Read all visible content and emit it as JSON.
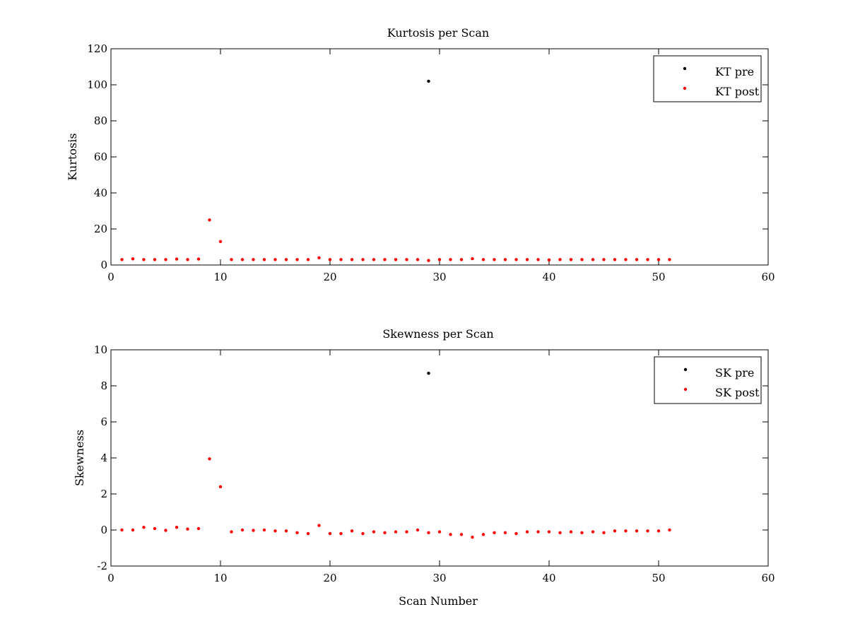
{
  "chart_data": [
    {
      "type": "scatter",
      "title": "Kurtosis per Scan",
      "xlabel": "",
      "ylabel": "Kurtosis",
      "xlim": [
        0,
        60
      ],
      "ylim": [
        0,
        120
      ],
      "xticks": [
        0,
        10,
        20,
        30,
        40,
        50,
        60
      ],
      "yticks": [
        0,
        20,
        40,
        60,
        80,
        100,
        120
      ],
      "grid": false,
      "legend_position": "top-right",
      "series": [
        {
          "name": "KT pre",
          "color": "#000000",
          "points": [
            [
              29,
              102
            ]
          ]
        },
        {
          "name": "KT post",
          "color": "#ff0000",
          "points": [
            [
              1,
              3
            ],
            [
              2,
              3.4
            ],
            [
              3,
              3
            ],
            [
              4,
              3
            ],
            [
              5,
              3
            ],
            [
              6,
              3.3
            ],
            [
              7,
              3
            ],
            [
              8,
              3.3
            ],
            [
              9,
              25
            ],
            [
              10,
              13
            ],
            [
              11,
              3
            ],
            [
              12,
              3
            ],
            [
              13,
              3
            ],
            [
              14,
              3
            ],
            [
              15,
              3
            ],
            [
              16,
              3
            ],
            [
              17,
              3
            ],
            [
              18,
              3
            ],
            [
              19,
              4
            ],
            [
              20,
              3
            ],
            [
              21,
              3
            ],
            [
              22,
              3
            ],
            [
              23,
              3
            ],
            [
              24,
              3
            ],
            [
              25,
              3
            ],
            [
              26,
              3
            ],
            [
              27,
              3
            ],
            [
              28,
              3
            ],
            [
              29,
              2.5
            ],
            [
              30,
              3
            ],
            [
              31,
              3
            ],
            [
              32,
              3
            ],
            [
              33,
              3.5
            ],
            [
              34,
              3
            ],
            [
              35,
              3
            ],
            [
              36,
              3
            ],
            [
              37,
              3
            ],
            [
              38,
              3
            ],
            [
              39,
              3
            ],
            [
              40,
              2.8
            ],
            [
              41,
              3
            ],
            [
              42,
              3
            ],
            [
              43,
              3
            ],
            [
              44,
              3
            ],
            [
              45,
              3
            ],
            [
              46,
              3
            ],
            [
              47,
              3
            ],
            [
              48,
              3
            ],
            [
              49,
              3
            ],
            [
              50,
              3
            ],
            [
              51,
              3
            ]
          ]
        }
      ]
    },
    {
      "type": "scatter",
      "title": "Skewness per Scan",
      "xlabel": "Scan Number",
      "ylabel": "Skewness",
      "xlim": [
        0,
        60
      ],
      "ylim": [
        -2,
        10
      ],
      "xticks": [
        0,
        10,
        20,
        30,
        40,
        50,
        60
      ],
      "yticks": [
        -2,
        0,
        2,
        4,
        6,
        8,
        10
      ],
      "grid": false,
      "legend_position": "top-right",
      "series": [
        {
          "name": "SK pre",
          "color": "#000000",
          "points": [
            [
              29,
              8.7
            ]
          ]
        },
        {
          "name": "SK post",
          "color": "#ff0000",
          "points": [
            [
              1,
              0
            ],
            [
              2,
              0
            ],
            [
              3,
              0.15
            ],
            [
              4,
              0.08
            ],
            [
              5,
              -0.02
            ],
            [
              6,
              0.15
            ],
            [
              7,
              0.05
            ],
            [
              8,
              0.08
            ],
            [
              9,
              3.95
            ],
            [
              10,
              2.4
            ],
            [
              11,
              -0.1
            ],
            [
              12,
              0
            ],
            [
              13,
              -0.02
            ],
            [
              14,
              0
            ],
            [
              15,
              -0.05
            ],
            [
              16,
              -0.05
            ],
            [
              17,
              -0.15
            ],
            [
              18,
              -0.2
            ],
            [
              19,
              0.25
            ],
            [
              20,
              -0.2
            ],
            [
              21,
              -0.2
            ],
            [
              22,
              -0.05
            ],
            [
              23,
              -0.2
            ],
            [
              24,
              -0.1
            ],
            [
              25,
              -0.15
            ],
            [
              26,
              -0.1
            ],
            [
              27,
              -0.1
            ],
            [
              28,
              0
            ],
            [
              29,
              -0.15
            ],
            [
              30,
              -0.1
            ],
            [
              31,
              -0.25
            ],
            [
              32,
              -0.25
            ],
            [
              33,
              -0.4
            ],
            [
              34,
              -0.25
            ],
            [
              35,
              -0.15
            ],
            [
              36,
              -0.15
            ],
            [
              37,
              -0.2
            ],
            [
              38,
              -0.1
            ],
            [
              39,
              -0.1
            ],
            [
              40,
              -0.1
            ],
            [
              41,
              -0.15
            ],
            [
              42,
              -0.1
            ],
            [
              43,
              -0.15
            ],
            [
              44,
              -0.1
            ],
            [
              45,
              -0.15
            ],
            [
              46,
              -0.05
            ],
            [
              47,
              -0.05
            ],
            [
              48,
              -0.05
            ],
            [
              49,
              -0.05
            ],
            [
              50,
              -0.05
            ],
            [
              51,
              0
            ]
          ]
        }
      ]
    }
  ]
}
